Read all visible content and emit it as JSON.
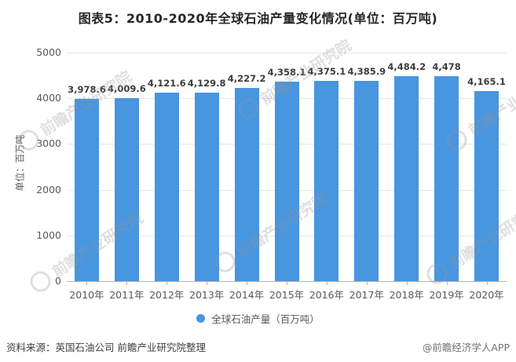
{
  "title": "图表5：2010-2020年全球石油产量变化情况(单位：百万吨)",
  "chart_data": {
    "type": "bar",
    "categories": [
      "2010年",
      "2011年",
      "2012年",
      "2013年",
      "2014年",
      "2015年",
      "2016年",
      "2017年",
      "2018年",
      "2019年",
      "2020年"
    ],
    "values": [
      3978.6,
      4009.6,
      4121.6,
      4129.8,
      4227.2,
      4358.1,
      4375.1,
      4385.9,
      4484.2,
      4478,
      4165.1
    ],
    "value_labels": [
      "3,978.6",
      "4,009.6",
      "4,121.6",
      "4,129.8",
      "4,227.2",
      "4,358.1",
      "4,375.1",
      "4,385.9",
      "4,484.2",
      "4,478",
      "4,165.1"
    ],
    "title": "图表5：2010-2020年全球石油产量变化情况(单位：百万吨)",
    "xlabel": "",
    "ylabel": "单位：百万吨",
    "ylim": [
      0,
      5000
    ],
    "yticks": [
      0,
      1000,
      2000,
      3000,
      4000,
      5000
    ],
    "grid": true,
    "legend_label": "全球石油产量（百万吨）",
    "legend_position": "bottom",
    "bar_color": "#4895E0"
  },
  "footer": {
    "source": "资料来源：英国石油公司 前瞻产业研究院整理",
    "credit": "@前瞻经济学人APP"
  },
  "watermark_text": "前瞻产业研究院"
}
